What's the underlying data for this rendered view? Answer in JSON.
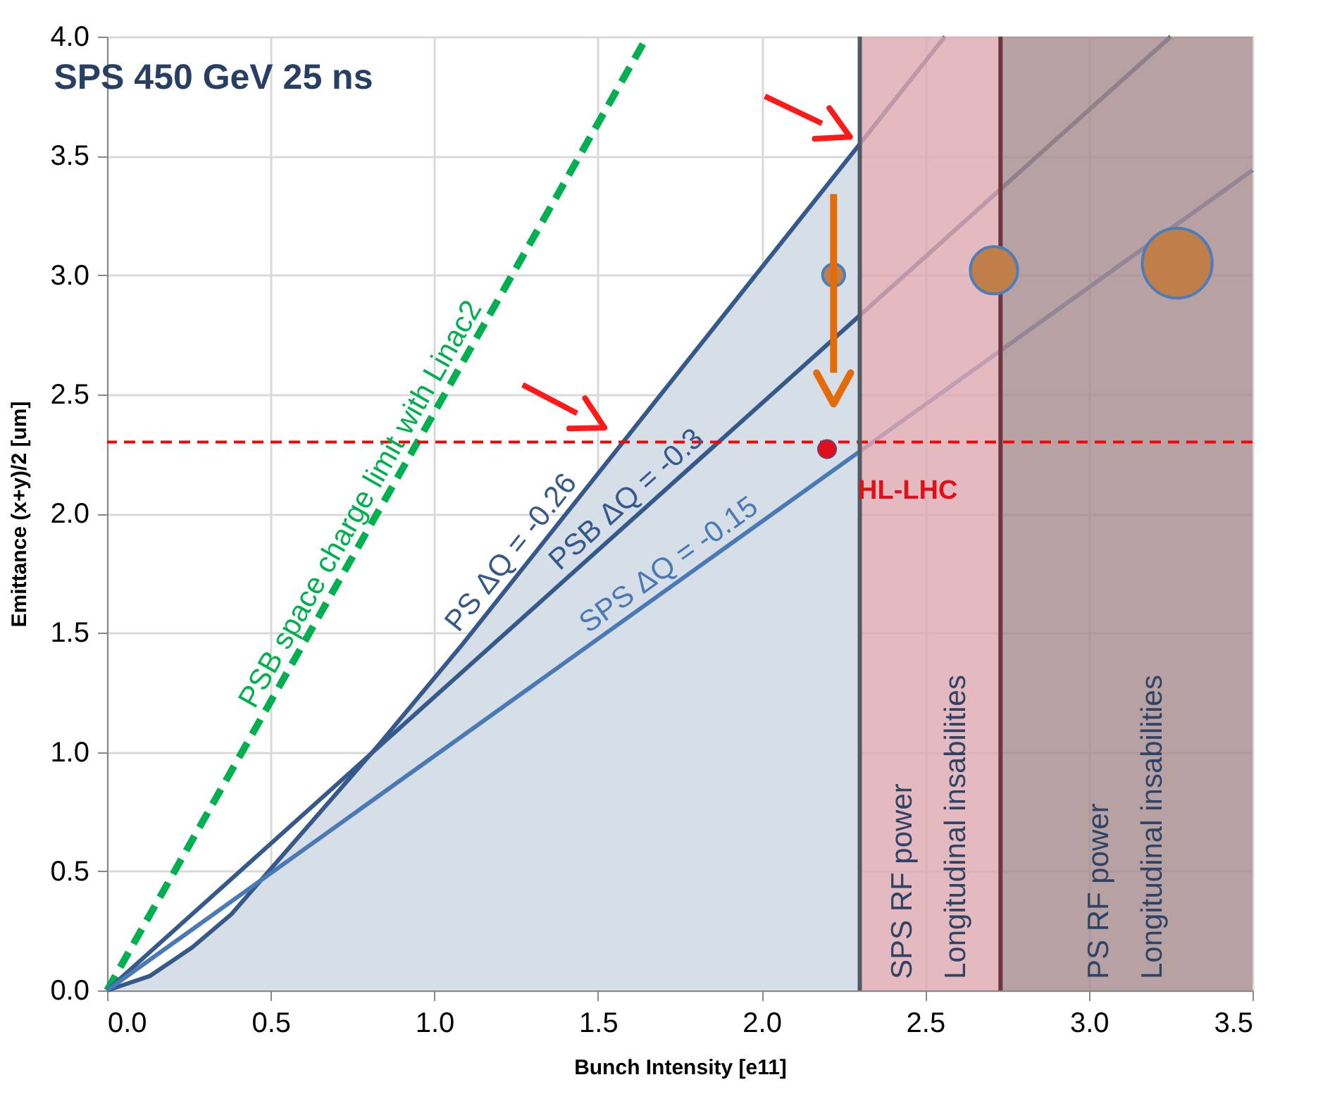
{
  "chart_data": {
    "type": "line",
    "title": "SPS 450  GeV 25 ns",
    "xlabel": "Bunch Intensity [e11]",
    "ylabel": "Emittance (x+y)/2 [um]",
    "xlim": [
      0,
      3.5
    ],
    "xticks": [
      {
        "value": 0,
        "label": "0.0"
      },
      0.5,
      {
        "value": 1,
        "label": "1.0"
      },
      1.5,
      {
        "value": 2,
        "label": "2.0"
      },
      2.5,
      {
        "value": 3,
        "label": "3.0"
      },
      3.5
    ],
    "ylim": [
      0,
      4
    ],
    "yticks": [
      {
        "value": 0,
        "label": "0.0"
      },
      0.5,
      {
        "value": 1,
        "label": "1.0"
      },
      1.5,
      {
        "value": 2,
        "label": "2.0"
      },
      2.5,
      {
        "value": 3,
        "label": "3.0"
      },
      3.5,
      {
        "value": 4,
        "label": "4.0"
      }
    ],
    "grid": true,
    "series": [
      {
        "type": "area",
        "color": "#d6dee8",
        "x": [
          0,
          0.13,
          0.26,
          0.38,
          0.83,
          1.085,
          2.3
        ],
        "values": [
          0,
          0.06,
          0.18,
          0.32,
          1.03,
          1.45,
          3.55
        ]
      },
      {
        "name": "PSB space charge limit with Linac2",
        "color": "#00b050",
        "line_style": "dashed",
        "x": [
          0,
          1.65
        ],
        "values": [
          0,
          4.0
        ]
      },
      {
        "name": "PS ΔQ = -0.26",
        "color": "#34598a",
        "x": [
          0,
          0.13,
          0.26,
          0.38,
          0.83,
          1.085,
          2.3,
          2.56
        ],
        "values": [
          0,
          0.06,
          0.18,
          0.32,
          1.03,
          1.45,
          3.55,
          4.0
        ]
      },
      {
        "name": "PSB ΔQ = -0.3",
        "color": "#34598a",
        "x": [
          0,
          3.25
        ],
        "values": [
          0,
          4.0
        ]
      },
      {
        "name": "SPS ΔQ = -0.15",
        "color": "#4a7ab5",
        "x": [
          0,
          3.5
        ],
        "values": [
          0,
          3.44
        ]
      },
      {
        "type": "bubble",
        "color": "#c07f48",
        "x": [
          2.22,
          2.71,
          3.27
        ],
        "values": [
          3.0,
          3.02,
          3.05
        ],
        "sizes": [
          0.1,
          0.46,
          1
        ]
      },
      {
        "type": "scatter",
        "name": "HL-LHC",
        "color": "#e0101a",
        "x": [
          2.2
        ],
        "values": [
          2.27
        ]
      }
    ],
    "bands": [
      {
        "axis": "x",
        "from": 2.3,
        "to": 2.73,
        "color": "#dfa8b0",
        "label": "SPS RF power\nLongitudinal insabilities"
      },
      {
        "axis": "x",
        "from": 2.73,
        "to": 3.5,
        "color": "#a6898c",
        "label": "PS RF power\nLongitudinal insabilities"
      }
    ],
    "ref_lines": [
      {
        "axis": "y",
        "value": 2.3,
        "color": "#ff0000",
        "line_style": "dashed"
      },
      {
        "axis": "x",
        "value": 2.3,
        "color": "#505a64"
      },
      {
        "axis": "x",
        "value": 2.73,
        "color": "#6e3540"
      }
    ]
  }
}
